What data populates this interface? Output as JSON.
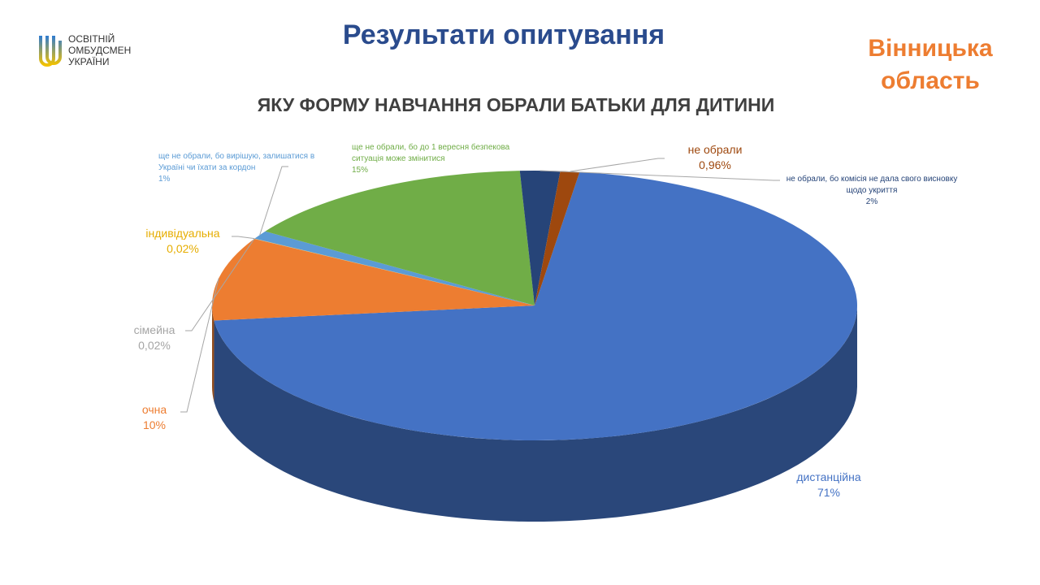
{
  "header": {
    "logo_lines": [
      "ОСВІТНІЙ",
      "ОМБУДСМЕН",
      "УКРАЇНИ"
    ],
    "title": "Результати опитування",
    "region": "Вінницька область"
  },
  "chart_data": {
    "type": "pie3d",
    "title": "ЯКУ ФОРМУ НАВЧАННЯ ОБРАЛИ БАТЬКИ ДЛЯ ДИТИНИ",
    "categories": [
      "дистанційна",
      "очна",
      "сімейна",
      "індивідуальна",
      "ще не обрали, бо вирішую, залишатися в Україні чи їхати за кордон",
      "ще не обрали, бо до 1 вересня безпекова ситуація  може змінитися",
      "не обрали, бо комісія  не дала свого висновку  щодо укриття",
      "не обрали"
    ],
    "values": [
      71,
      10,
      0.02,
      0.02,
      1,
      15,
      2,
      0.96
    ],
    "value_labels": [
      "71%",
      "10%",
      "0,02%",
      "0,02%",
      "1%",
      "15%",
      "2%",
      "0,96%"
    ],
    "colors": [
      "#4472c4",
      "#ed7d31",
      "#a5a5a5",
      "#ffc000",
      "#5b9bd5",
      "#70ad47",
      "#264478",
      "#9e480e"
    ]
  }
}
